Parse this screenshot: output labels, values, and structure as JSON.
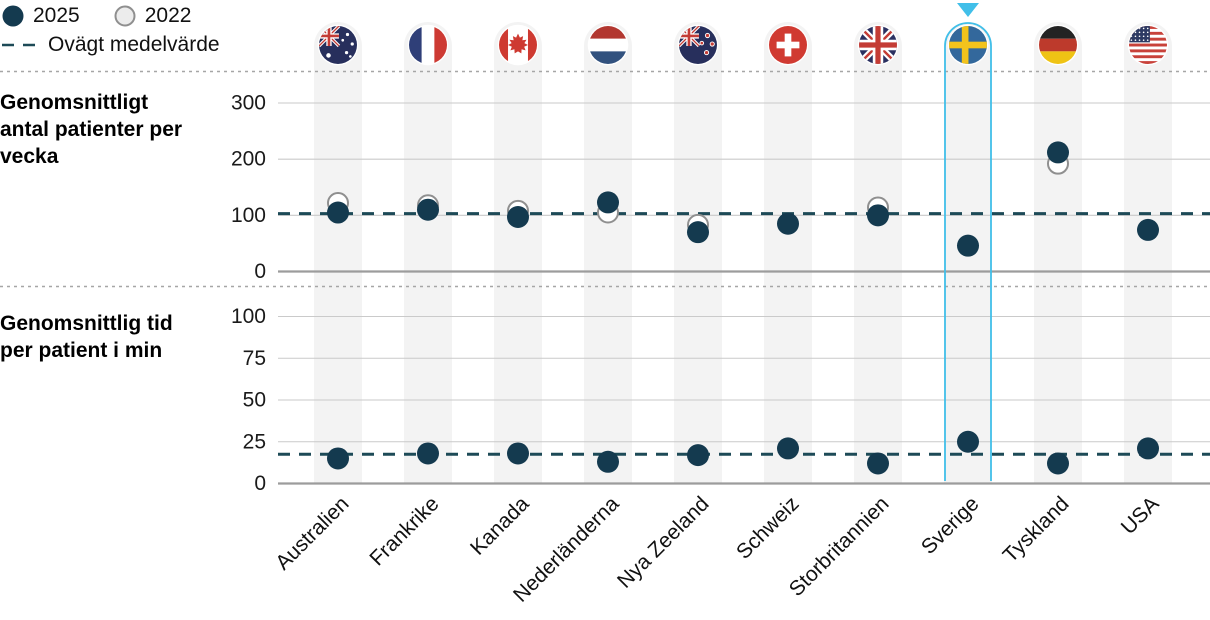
{
  "legend": {
    "item_2025": "2025",
    "item_2022": "2022",
    "mean_label": "Ovägt medelvärde"
  },
  "colors": {
    "point_2025": "#143a4f",
    "point_2022_stroke": "#8f8f8f",
    "point_2022_fill": "#ffffff",
    "mean_line": "#1d4a57",
    "grid": "#cacaca",
    "axis": "#9c9c9c",
    "stripe": "#f3f3f3",
    "separator": "#a6a6a6",
    "highlight": "#41bfe9",
    "text": "#111111"
  },
  "countries": [
    {
      "label": "Australien",
      "flag": "australia"
    },
    {
      "label": "Frankrike",
      "flag": "france"
    },
    {
      "label": "Kanada",
      "flag": "canada"
    },
    {
      "label": "Nederländerna",
      "flag": "netherlands"
    },
    {
      "label": "Nya Zeeland",
      "flag": "new-zealand"
    },
    {
      "label": "Schweiz",
      "flag": "switzerland"
    },
    {
      "label": "Storbritannien",
      "flag": "uk"
    },
    {
      "label": "Sverige",
      "flag": "sweden"
    },
    {
      "label": "Tyskland",
      "flag": "germany"
    },
    {
      "label": "USA",
      "flag": "usa"
    }
  ],
  "highlight": {
    "country": "Sverige"
  },
  "chart_data": [
    {
      "type": "scatter",
      "title": "Genomsnittligt antal patienter per vecka",
      "categories": [
        "Australien",
        "Frankrike",
        "Kanada",
        "Nederländerna",
        "Nya Zeeland",
        "Schweiz",
        "Storbritannien",
        "Sverige",
        "Tyskland",
        "USA"
      ],
      "series": [
        {
          "name": "2025",
          "values": [
            105,
            110,
            97,
            123,
            70,
            85,
            100,
            46,
            212,
            74
          ]
        },
        {
          "name": "2022",
          "values": [
            122,
            118,
            108,
            105,
            83,
            null,
            114,
            null,
            192,
            null
          ]
        }
      ],
      "mean_line": {
        "label": "Ovägt medelvärde",
        "value": 103
      },
      "ylim": [
        0,
        300
      ],
      "yticks": [
        300,
        200,
        100,
        0
      ],
      "grid": true,
      "legend_position": "top-left"
    },
    {
      "type": "scatter",
      "title": "Genomsnittlig tid per patient i min",
      "categories": [
        "Australien",
        "Frankrike",
        "Kanada",
        "Nederländerna",
        "Nya Zeeland",
        "Schweiz",
        "Storbritannien",
        "Sverige",
        "Tyskland",
        "USA"
      ],
      "series": [
        {
          "name": "2025",
          "values": [
            15,
            18,
            18,
            13,
            17,
            21,
            12,
            25,
            12,
            21
          ]
        },
        {
          "name": "2022",
          "values": [
            null,
            null,
            null,
            null,
            null,
            null,
            null,
            null,
            null,
            null
          ]
        }
      ],
      "mean_line": {
        "label": "Ovägt medelvärde",
        "value": 17.5
      },
      "ylim": [
        0,
        100
      ],
      "yticks": [
        100,
        75,
        50,
        25,
        0
      ],
      "grid": true
    }
  ]
}
